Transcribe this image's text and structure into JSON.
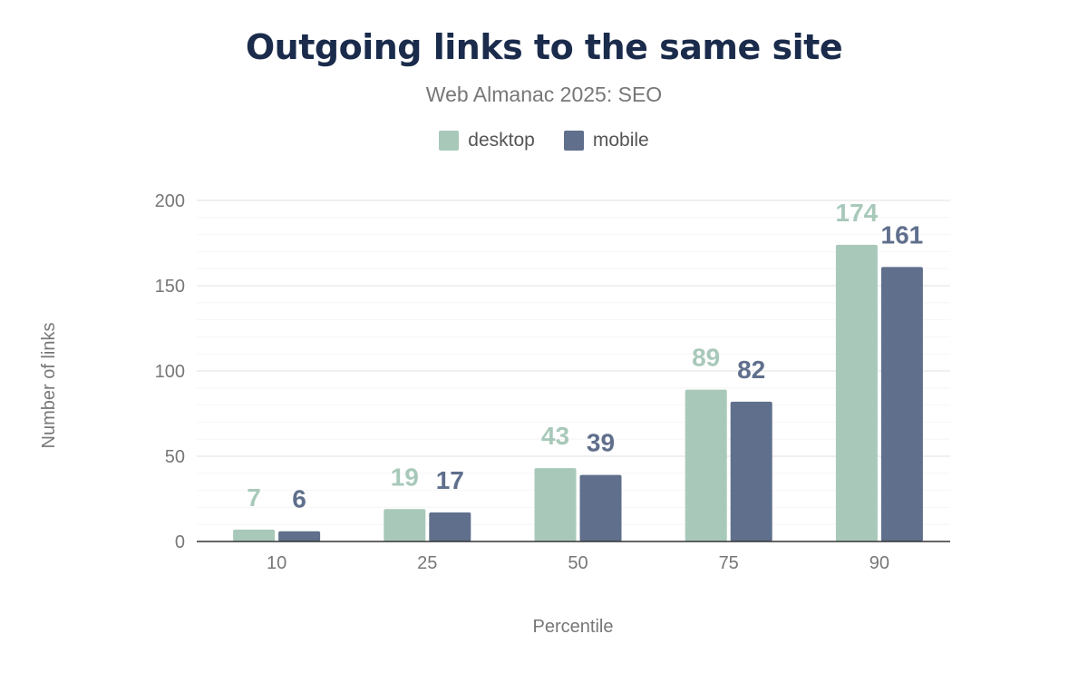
{
  "chart_data": {
    "type": "bar",
    "title": "Outgoing links to the same site",
    "subtitle": "Web Almanac 2025: SEO",
    "xlabel": "Percentile",
    "ylabel": "Number of links",
    "categories": [
      "10",
      "25",
      "50",
      "75",
      "90"
    ],
    "series": [
      {
        "name": "desktop",
        "color": "#a8c9ba",
        "values": [
          7,
          19,
          43,
          89,
          174
        ]
      },
      {
        "name": "mobile",
        "color": "#5f6f8c",
        "values": [
          6,
          17,
          39,
          82,
          161
        ]
      }
    ],
    "ylim": [
      0,
      200
    ],
    "yticks": [
      0,
      50,
      100,
      150,
      200
    ],
    "grid": true,
    "legend": "top-center"
  }
}
